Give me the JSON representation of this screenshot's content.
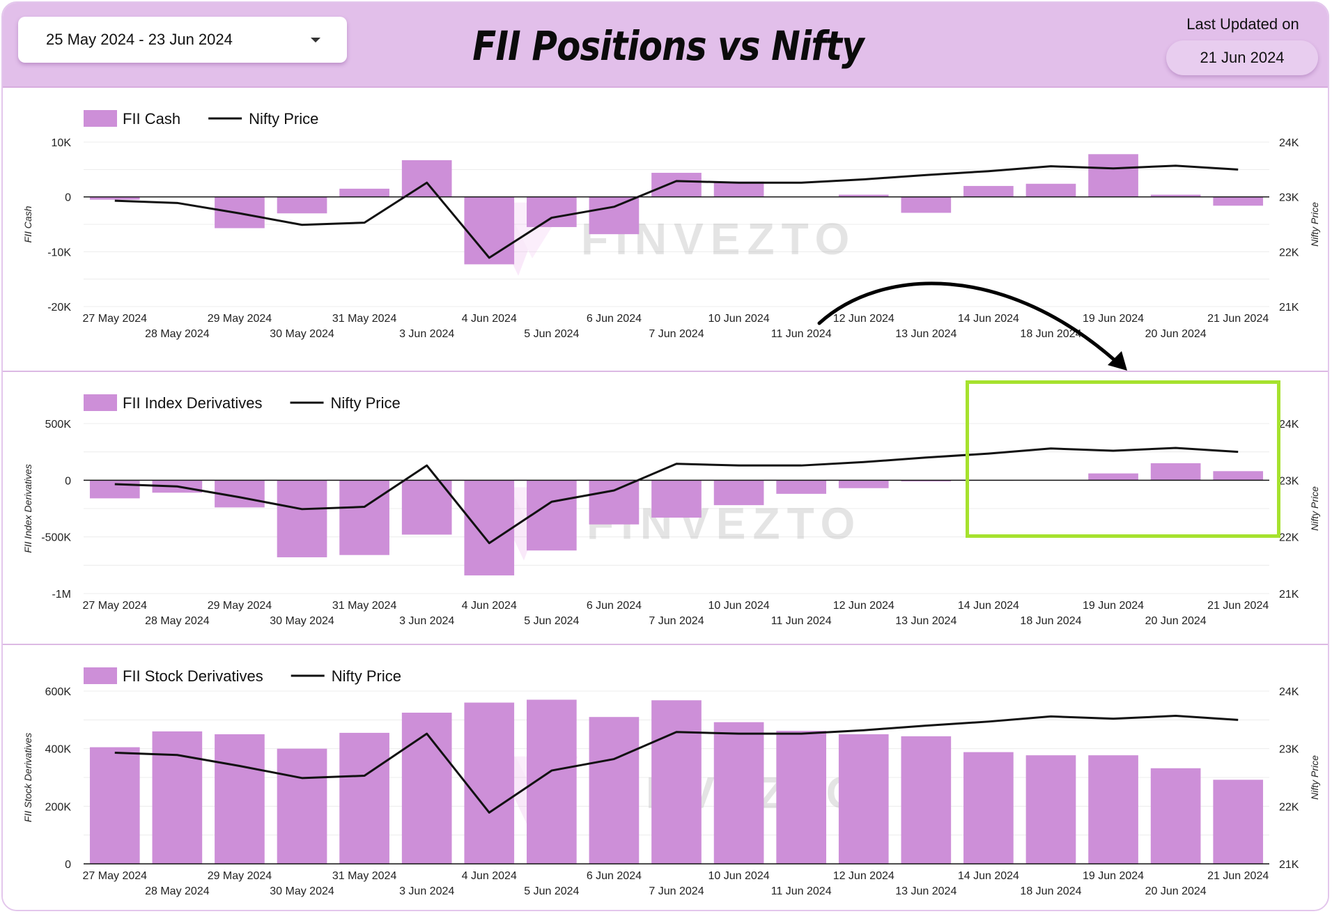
{
  "header": {
    "date_range": "25 May 2024 - 23 Jun 2024",
    "title": "FII Positions vs Nifty",
    "last_updated_label": "Last Updated on",
    "last_updated_value": "21 Jun 2024"
  },
  "watermark": "FINVEZTO",
  "colors": {
    "bar": "#cd8fd8",
    "line": "#111111",
    "header_bg": "#e2bfea",
    "highlight": "#a6e22e"
  },
  "chart_data": [
    {
      "type": "bar",
      "categories": [
        "27 May 2024",
        "28 May 2024",
        "29 May 2024",
        "30 May 2024",
        "31 May 2024",
        "3 Jun 2024",
        "4 Jun 2024",
        "5 Jun 2024",
        "6 Jun 2024",
        "7 Jun 2024",
        "10 Jun 2024",
        "11 Jun 2024",
        "12 Jun 2024",
        "13 Jun 2024",
        "14 Jun 2024",
        "18 Jun 2024",
        "19 Jun 2024",
        "20 Jun 2024",
        "21 Jun 2024"
      ],
      "series": [
        {
          "name": "FII Cash",
          "type": "bar",
          "axis": "left",
          "values": [
            -500,
            0,
            -5700,
            -3000,
            1500,
            6700,
            -12300,
            -5500,
            -6800,
            4400,
            2800,
            0,
            400,
            -2900,
            2000,
            2400,
            7800,
            400,
            -1600
          ]
        },
        {
          "name": "Nifty Price",
          "type": "line",
          "axis": "right",
          "values": [
            22930,
            22890,
            22700,
            22490,
            22530,
            23260,
            21890,
            22620,
            22820,
            23290,
            23260,
            23260,
            23320,
            23400,
            23470,
            23560,
            23520,
            23570,
            23500
          ]
        }
      ],
      "ylabel": "FII Cash",
      "y2label": "Nifty Price",
      "ylim": [
        -20000,
        10000
      ],
      "y2lim": [
        21000,
        24000
      ],
      "yticks": [
        "10K",
        "0",
        "-10K",
        "-20K"
      ],
      "y2ticks": [
        "24K",
        "23K",
        "22K",
        "21K"
      ],
      "grid": true,
      "legend": "top-left"
    },
    {
      "type": "bar",
      "categories": [
        "27 May 2024",
        "28 May 2024",
        "29 May 2024",
        "30 May 2024",
        "31 May 2024",
        "3 Jun 2024",
        "4 Jun 2024",
        "5 Jun 2024",
        "6 Jun 2024",
        "7 Jun 2024",
        "10 Jun 2024",
        "11 Jun 2024",
        "12 Jun 2024",
        "13 Jun 2024",
        "14 Jun 2024",
        "18 Jun 2024",
        "19 Jun 2024",
        "20 Jun 2024",
        "21 Jun 2024"
      ],
      "series": [
        {
          "name": "FII Index Derivatives",
          "type": "bar",
          "axis": "left",
          "values": [
            -160000,
            -110000,
            -240000,
            -680000,
            -660000,
            -480000,
            -840000,
            -620000,
            -390000,
            -330000,
            -220000,
            -120000,
            -70000,
            -10000,
            -5000,
            0,
            60000,
            150000,
            80000
          ]
        },
        {
          "name": "Nifty Price",
          "type": "line",
          "axis": "right",
          "values": [
            22930,
            22890,
            22700,
            22490,
            22530,
            23260,
            21890,
            22620,
            22820,
            23290,
            23260,
            23260,
            23320,
            23400,
            23470,
            23560,
            23520,
            23570,
            23500
          ]
        }
      ],
      "ylabel": "FII Index Derivatives",
      "y2label": "Nifty Price",
      "ylim": [
        -1000000,
        500000
      ],
      "y2lim": [
        21000,
        24000
      ],
      "yticks": [
        "500K",
        "0",
        "-500K",
        "-1M"
      ],
      "y2ticks": [
        "24K",
        "23K",
        "22K",
        "21K"
      ],
      "grid": true,
      "legend": "top-left"
    },
    {
      "type": "bar",
      "categories": [
        "27 May 2024",
        "28 May 2024",
        "29 May 2024",
        "30 May 2024",
        "31 May 2024",
        "3 Jun 2024",
        "4 Jun 2024",
        "5 Jun 2024",
        "6 Jun 2024",
        "7 Jun 2024",
        "10 Jun 2024",
        "11 Jun 2024",
        "12 Jun 2024",
        "13 Jun 2024",
        "14 Jun 2024",
        "18 Jun 2024",
        "19 Jun 2024",
        "20 Jun 2024",
        "21 Jun 2024"
      ],
      "series": [
        {
          "name": "FII Stock Derivatives",
          "type": "bar",
          "axis": "left",
          "values": [
            405000,
            460000,
            450000,
            400000,
            455000,
            525000,
            560000,
            570000,
            510000,
            568000,
            492000,
            462000,
            450000,
            443000,
            388000,
            377000,
            377000,
            332000,
            292000
          ]
        },
        {
          "name": "Nifty Price",
          "type": "line",
          "axis": "right",
          "values": [
            22930,
            22890,
            22700,
            22490,
            22530,
            23260,
            21890,
            22620,
            22820,
            23290,
            23260,
            23260,
            23320,
            23400,
            23470,
            23560,
            23520,
            23570,
            23500
          ]
        }
      ],
      "ylabel": "FII Stock Derivatives",
      "y2label": "Nifty Price",
      "ylim": [
        0,
        600000
      ],
      "y2lim": [
        21000,
        24000
      ],
      "yticks": [
        "600K",
        "400K",
        "200K",
        "0"
      ],
      "y2ticks": [
        "24K",
        "23K",
        "22K",
        "21K"
      ],
      "grid": true,
      "legend": "top-left"
    }
  ]
}
